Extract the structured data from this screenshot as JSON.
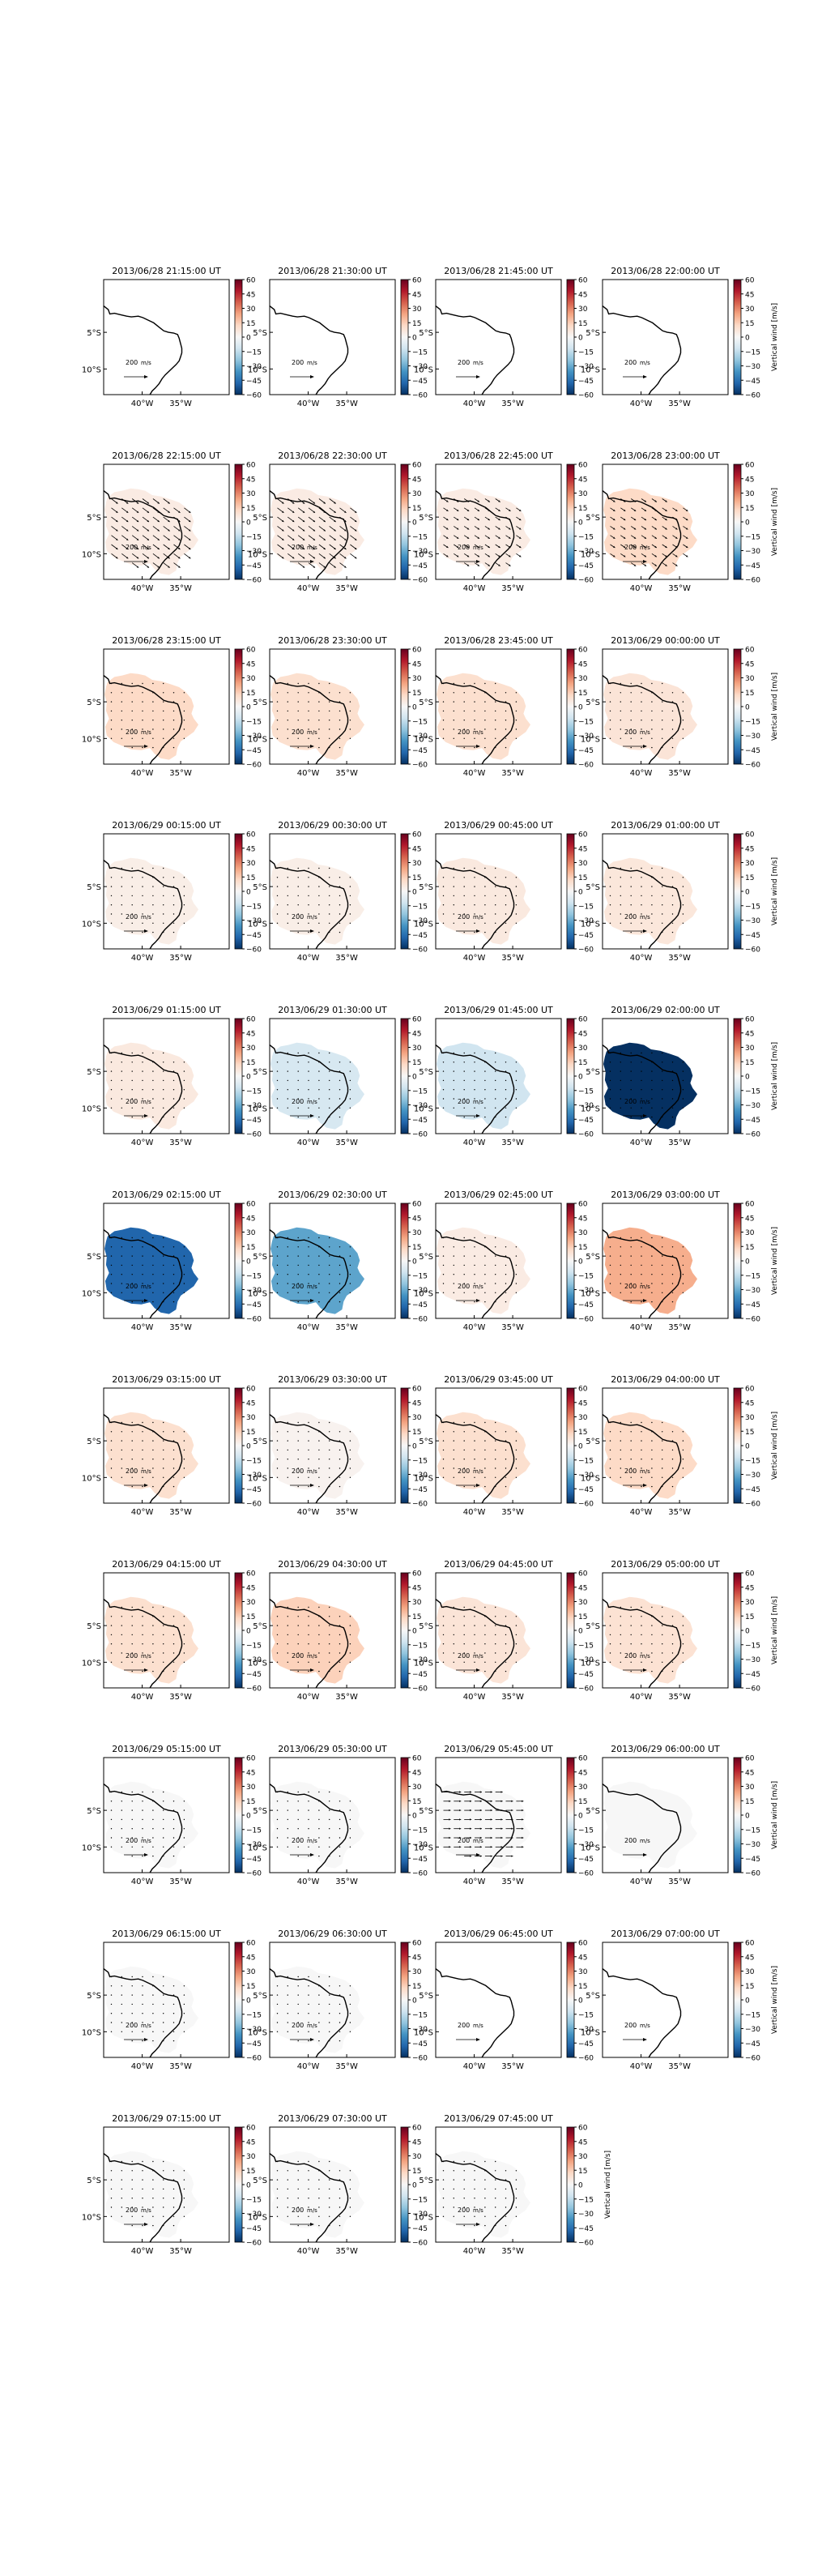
{
  "figure": {
    "colorbar_label": "Vertical wind [m/s]",
    "colorbar_ticks": [
      "60",
      "45",
      "30",
      "15",
      "0",
      "−15",
      "−30",
      "−45",
      "−60"
    ],
    "scale_arrow_label": "200",
    "scale_arrow_unit": "m/s",
    "lat_ticks": [
      "5°S",
      "10°S"
    ],
    "lon_ticks": [
      "40°W",
      "35°W"
    ],
    "colormap": [
      "#053061",
      "#2166ac",
      "#4393c3",
      "#92c5de",
      "#d1e5f0",
      "#f7f7f7",
      "#fddbc7",
      "#f4a582",
      "#d6604d",
      "#b2182b",
      "#67001f"
    ],
    "coastline_color": "#000000",
    "no_data_color": "#ffffff"
  },
  "chart_data": {
    "type": "heatmap",
    "description_of_values": "area-mean vertical wind per panel (m/s), read from the colour scale",
    "vmin": -60,
    "vmax": 60,
    "panels": [
      {
        "title": "2013/06/28 21:15:00 UT",
        "wind": null,
        "vectors": "none"
      },
      {
        "title": "2013/06/28 21:30:00 UT",
        "wind": null,
        "vectors": "none"
      },
      {
        "title": "2013/06/28 21:45:00 UT",
        "wind": null,
        "vectors": "none"
      },
      {
        "title": "2013/06/28 22:00:00 UT",
        "wind": null,
        "vectors": "none"
      },
      {
        "title": "2013/06/28 22:15:00 UT",
        "wind": 5,
        "vectors": "long"
      },
      {
        "title": "2013/06/28 22:30:00 UT",
        "wind": 5,
        "vectors": "long"
      },
      {
        "title": "2013/06/28 22:45:00 UT",
        "wind": 5,
        "vectors": "medium"
      },
      {
        "title": "2013/06/28 23:00:00 UT",
        "wind": 12,
        "vectors": "medium"
      },
      {
        "title": "2013/06/28 23:15:00 UT",
        "wind": 12,
        "vectors": "dots"
      },
      {
        "title": "2013/06/28 23:30:00 UT",
        "wind": 10,
        "vectors": "dots"
      },
      {
        "title": "2013/06/28 23:45:00 UT",
        "wind": 10,
        "vectors": "dots"
      },
      {
        "title": "2013/06/29 00:00:00 UT",
        "wind": 8,
        "vectors": "dots"
      },
      {
        "title": "2013/06/29 00:15:00 UT",
        "wind": 4,
        "vectors": "dots"
      },
      {
        "title": "2013/06/29 00:30:00 UT",
        "wind": 4,
        "vectors": "dots"
      },
      {
        "title": "2013/06/29 00:45:00 UT",
        "wind": 6,
        "vectors": "dots"
      },
      {
        "title": "2013/06/29 01:00:00 UT",
        "wind": 7,
        "vectors": "dots"
      },
      {
        "title": "2013/06/29 01:15:00 UT",
        "wind": 6,
        "vectors": "dots"
      },
      {
        "title": "2013/06/29 01:30:00 UT",
        "wind": -10,
        "vectors": "dots"
      },
      {
        "title": "2013/06/29 01:45:00 UT",
        "wind": -12,
        "vectors": "dots"
      },
      {
        "title": "2013/06/29 02:00:00 UT",
        "wind": -60,
        "vectors": "dots"
      },
      {
        "title": "2013/06/29 02:15:00 UT",
        "wind": -48,
        "vectors": "dots"
      },
      {
        "title": "2013/06/29 02:30:00 UT",
        "wind": -32,
        "vectors": "dots"
      },
      {
        "title": "2013/06/29 02:45:00 UT",
        "wind": 5,
        "vectors": "dots"
      },
      {
        "title": "2013/06/29 03:00:00 UT",
        "wind": 22,
        "vectors": "dots"
      },
      {
        "title": "2013/06/29 03:15:00 UT",
        "wind": 10,
        "vectors": "dots"
      },
      {
        "title": "2013/06/29 03:30:00 UT",
        "wind": 2,
        "vectors": "dots"
      },
      {
        "title": "2013/06/29 03:45:00 UT",
        "wind": 10,
        "vectors": "dots"
      },
      {
        "title": "2013/06/29 04:00:00 UT",
        "wind": 12,
        "vectors": "dots"
      },
      {
        "title": "2013/06/29 04:15:00 UT",
        "wind": 10,
        "vectors": "dots"
      },
      {
        "title": "2013/06/29 04:30:00 UT",
        "wind": 14,
        "vectors": "dots"
      },
      {
        "title": "2013/06/29 04:45:00 UT",
        "wind": 8,
        "vectors": "dots"
      },
      {
        "title": "2013/06/29 05:00:00 UT",
        "wind": 9,
        "vectors": "dots"
      },
      {
        "title": "2013/06/29 05:15:00 UT",
        "wind": 0,
        "vectors": "dots"
      },
      {
        "title": "2013/06/29 05:30:00 UT",
        "wind": 0,
        "vectors": "dots"
      },
      {
        "title": "2013/06/29 05:45:00 UT",
        "wind": 0,
        "vectors": "horizontal"
      },
      {
        "title": "2013/06/29 06:00:00 UT",
        "wind": 0,
        "vectors": "none"
      },
      {
        "title": "2013/06/29 06:15:00 UT",
        "wind": 0,
        "vectors": "dots"
      },
      {
        "title": "2013/06/29 06:30:00 UT",
        "wind": 0,
        "vectors": "dots"
      },
      {
        "title": "2013/06/29 06:45:00 UT",
        "wind": null,
        "vectors": "none"
      },
      {
        "title": "2013/06/29 07:00:00 UT",
        "wind": null,
        "vectors": "none"
      },
      {
        "title": "2013/06/29 07:15:00 UT",
        "wind": 0,
        "vectors": "dots"
      },
      {
        "title": "2013/06/29 07:30:00 UT",
        "wind": 0,
        "vectors": "dots"
      },
      {
        "title": "2013/06/29 07:45:00 UT",
        "wind": 0,
        "vectors": "dots"
      }
    ]
  }
}
